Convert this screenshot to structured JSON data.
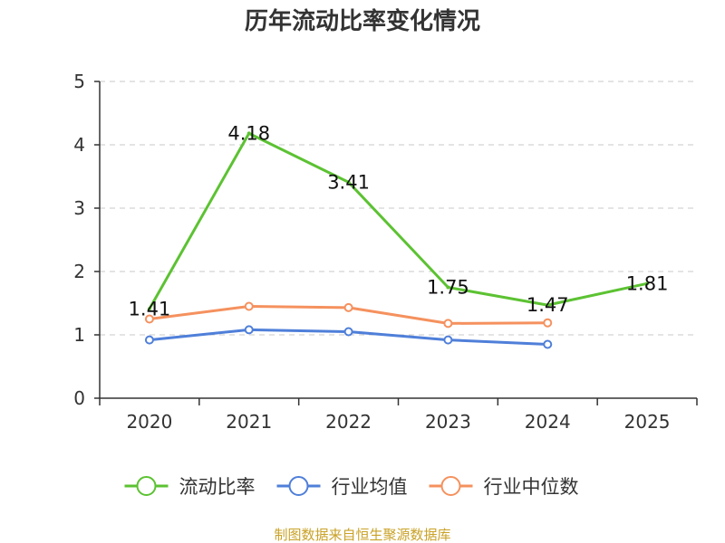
{
  "chart_data": {
    "type": "line",
    "title": "历年流动比率变化情况",
    "categories": [
      "2020",
      "2021",
      "2022",
      "2023",
      "2024",
      "2025"
    ],
    "ylim": [
      0,
      5
    ],
    "yticks": [
      "0",
      "1",
      "2",
      "3",
      "4",
      "5"
    ],
    "grid": true,
    "series": [
      {
        "name": "流动比率",
        "color": "#5cc232",
        "values": [
          1.41,
          4.18,
          3.41,
          1.75,
          1.47,
          1.81
        ],
        "point_labels": [
          "1.41",
          "4.18",
          "3.41",
          "1.75",
          "1.47",
          "1.81"
        ],
        "markers": false
      },
      {
        "name": "行业均值",
        "color": "#4f7fd9",
        "values": [
          0.92,
          1.08,
          1.05,
          0.92,
          0.85,
          null
        ],
        "markers": true
      },
      {
        "name": "行业中位数",
        "color": "#f5915e",
        "values": [
          1.25,
          1.45,
          1.43,
          1.18,
          1.19,
          null
        ],
        "markers": true
      }
    ],
    "legend_position": "bottom",
    "source": "制图数据来自恒生聚源数据库"
  }
}
